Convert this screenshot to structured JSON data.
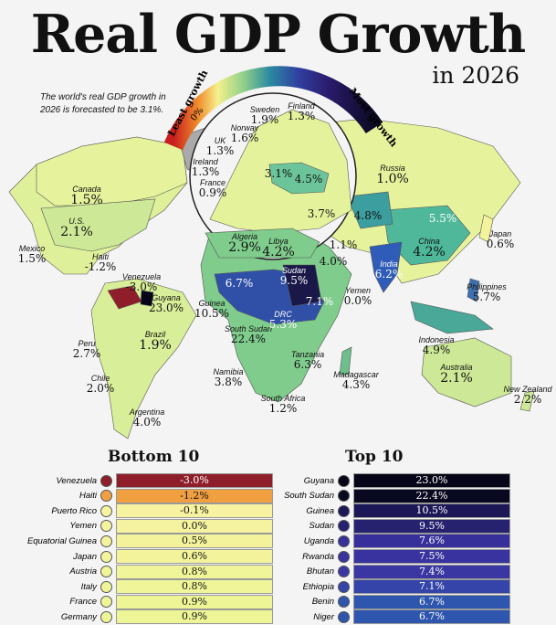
{
  "header": {
    "title": "Real GDP Growth",
    "year": "in 2026",
    "subtitle": "The world's real GDP growth in 2026 is forecasted to be 3.1%."
  },
  "legend": {
    "least": "Least growth",
    "zero": "0%",
    "most": "Most growth",
    "colors": [
      "#c81e1e",
      "#f08a2a",
      "#f5f08c",
      "#c8e68a",
      "#5cbf8a",
      "#2a8aa0",
      "#3040a0",
      "#2a1a6a",
      "#0a0a20"
    ]
  },
  "map_labels": [
    {
      "name": "Canada",
      "value": "1.5%"
    },
    {
      "name": "U.S.",
      "value": "2.1%"
    },
    {
      "name": "Mexico",
      "value": "1.5%"
    },
    {
      "name": "Haiti",
      "value": "-1.2%"
    },
    {
      "name": "Venezuela",
      "value": "-3.0%"
    },
    {
      "name": "Guyana",
      "value": "23.0%"
    },
    {
      "name": "Peru",
      "value": "2.7%"
    },
    {
      "name": "Brazil",
      "value": "1.9%"
    },
    {
      "name": "Chile",
      "value": "2.0%"
    },
    {
      "name": "Argentina",
      "value": "4.0%"
    },
    {
      "name": "Sweden",
      "value": "1.9%"
    },
    {
      "name": "Finland",
      "value": "1.3%"
    },
    {
      "name": "Norway",
      "value": "1.6%"
    },
    {
      "name": "UK",
      "value": "1.3%"
    },
    {
      "name": "Ireland",
      "value": "1.3%"
    },
    {
      "name": "France",
      "value": "0.9%"
    },
    {
      "name": "",
      "value": "3.1%"
    },
    {
      "name": "",
      "value": "4.5%"
    },
    {
      "name": "",
      "value": "3.7%"
    },
    {
      "name": "Algeria",
      "value": "2.9%"
    },
    {
      "name": "Libya",
      "value": "4.2%"
    },
    {
      "name": "",
      "value": "4.0%"
    },
    {
      "name": "Sudan",
      "value": "9.5%"
    },
    {
      "name": "",
      "value": "7.1%"
    },
    {
      "name": "",
      "value": "6.7%"
    },
    {
      "name": "Guinea",
      "value": "10.5%"
    },
    {
      "name": "South Sudan",
      "value": "22.4%"
    },
    {
      "name": "DRC",
      "value": "5.3%"
    },
    {
      "name": "Tanzania",
      "value": "6.3%"
    },
    {
      "name": "Namibia",
      "value": "3.8%"
    },
    {
      "name": "Madagascar",
      "value": "4.3%"
    },
    {
      "name": "South Africa",
      "value": "1.2%"
    },
    {
      "name": "Yemen",
      "value": "0.0%"
    },
    {
      "name": "Russia",
      "value": "1.0%"
    },
    {
      "name": "",
      "value": "4.8%"
    },
    {
      "name": "",
      "value": "5.5%"
    },
    {
      "name": "",
      "value": "1.1%"
    },
    {
      "name": "India",
      "value": "6.2%"
    },
    {
      "name": "China",
      "value": "4.2%"
    },
    {
      "name": "Japan",
      "value": "0.6%"
    },
    {
      "name": "Philippines",
      "value": "5.7%"
    },
    {
      "name": "Indonesia",
      "value": "4.9%"
    },
    {
      "name": "Australia",
      "value": "2.1%"
    },
    {
      "name": "New Zealand",
      "value": "2.2%"
    }
  ],
  "bottom10": {
    "title": "Bottom 10",
    "rows": [
      {
        "country": "Venezuela",
        "value": "-3.0%",
        "color": "#8e1f2a"
      },
      {
        "country": "Haiti",
        "value": "-1.2%",
        "color": "#f0a040"
      },
      {
        "country": "Puerto Rico",
        "value": "-0.1%",
        "color": "#f7f3a0"
      },
      {
        "country": "Yemen",
        "value": "0.0%",
        "color": "#f5f3a0"
      },
      {
        "country": "Equatorial Guinea",
        "value": "0.5%",
        "color": "#f3f39c"
      },
      {
        "country": "Japan",
        "value": "0.6%",
        "color": "#f2f39a"
      },
      {
        "country": "Austria",
        "value": "0.8%",
        "color": "#eff598"
      },
      {
        "country": "Italy",
        "value": "0.8%",
        "color": "#eff598"
      },
      {
        "country": "France",
        "value": "0.9%",
        "color": "#edf596"
      },
      {
        "country": "Germany",
        "value": "0.9%",
        "color": "#edf596"
      }
    ]
  },
  "top10": {
    "title": "Top 10",
    "rows": [
      {
        "country": "Guyana",
        "value": "23.0%",
        "color": "#070618"
      },
      {
        "country": "South Sudan",
        "value": "22.4%",
        "color": "#080820"
      },
      {
        "country": "Guinea",
        "value": "10.5%",
        "color": "#1c1858"
      },
      {
        "country": "Sudan",
        "value": "9.5%",
        "color": "#262270"
      },
      {
        "country": "Uganda",
        "value": "7.6%",
        "color": "#37309a"
      },
      {
        "country": "Rwanda",
        "value": "7.5%",
        "color": "#38339e"
      },
      {
        "country": "Bhutan",
        "value": "7.4%",
        "color": "#3a36a2"
      },
      {
        "country": "Ethiopia",
        "value": "7.1%",
        "color": "#3444a8"
      },
      {
        "country": "Benin",
        "value": "6.7%",
        "color": "#2e56ae"
      },
      {
        "country": "Niger",
        "value": "6.7%",
        "color": "#2e56ae"
      }
    ]
  }
}
